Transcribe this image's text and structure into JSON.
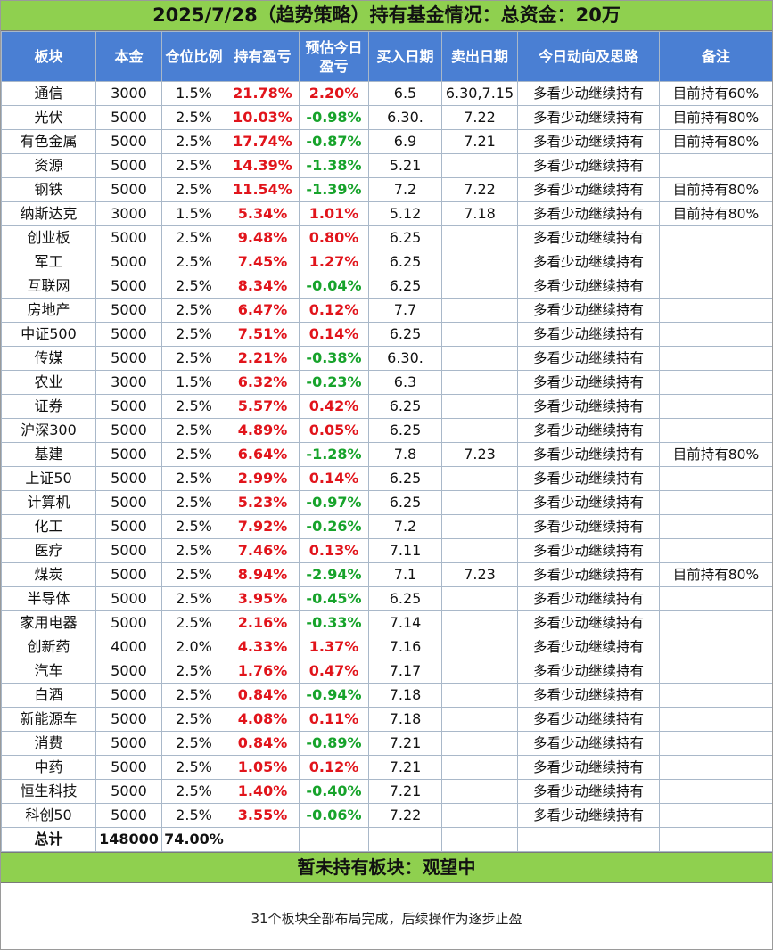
{
  "title": "2025/7/28（趋势策略）持有基金情况：总资金：20万",
  "headers": [
    "板块",
    "本金",
    "仓位比例",
    "持有盈亏",
    "预估今日盈亏",
    "买入日期",
    "卖出日期",
    "今日动向及思路",
    "备注"
  ],
  "rows": [
    {
      "sector": "通信",
      "capital": "3000",
      "ratio": "1.5%",
      "pl": "21.78%",
      "est": "2.20%",
      "buy": "6.5",
      "sell": "6.30,7.15",
      "action": "多看少动继续持有",
      "note": "目前持有60%"
    },
    {
      "sector": "光伏",
      "capital": "5000",
      "ratio": "2.5%",
      "pl": "10.03%",
      "est": "-0.98%",
      "buy": "6.30.",
      "sell": "7.22",
      "action": "多看少动继续持有",
      "note": "目前持有80%"
    },
    {
      "sector": "有色金属",
      "capital": "5000",
      "ratio": "2.5%",
      "pl": "17.74%",
      "est": "-0.87%",
      "buy": "6.9",
      "sell": "7.21",
      "action": "多看少动继续持有",
      "note": "目前持有80%"
    },
    {
      "sector": "资源",
      "capital": "5000",
      "ratio": "2.5%",
      "pl": "14.39%",
      "est": "-1.38%",
      "buy": "5.21",
      "sell": "",
      "action": "多看少动继续持有",
      "note": ""
    },
    {
      "sector": "钢铁",
      "capital": "5000",
      "ratio": "2.5%",
      "pl": "11.54%",
      "est": "-1.39%",
      "buy": "7.2",
      "sell": "7.22",
      "action": "多看少动继续持有",
      "note": "目前持有80%"
    },
    {
      "sector": "纳斯达克",
      "capital": "3000",
      "ratio": "1.5%",
      "pl": "5.34%",
      "est": "1.01%",
      "buy": "5.12",
      "sell": "7.18",
      "action": "多看少动继续持有",
      "note": "目前持有80%"
    },
    {
      "sector": "创业板",
      "capital": "5000",
      "ratio": "2.5%",
      "pl": "9.48%",
      "est": "0.80%",
      "buy": "6.25",
      "sell": "",
      "action": "多看少动继续持有",
      "note": ""
    },
    {
      "sector": "军工",
      "capital": "5000",
      "ratio": "2.5%",
      "pl": "7.45%",
      "est": "1.27%",
      "buy": "6.25",
      "sell": "",
      "action": "多看少动继续持有",
      "note": ""
    },
    {
      "sector": "互联网",
      "capital": "5000",
      "ratio": "2.5%",
      "pl": "8.34%",
      "est": "-0.04%",
      "buy": "6.25",
      "sell": "",
      "action": "多看少动继续持有",
      "note": ""
    },
    {
      "sector": "房地产",
      "capital": "5000",
      "ratio": "2.5%",
      "pl": "6.47%",
      "est": "0.12%",
      "buy": "7.7",
      "sell": "",
      "action": "多看少动继续持有",
      "note": ""
    },
    {
      "sector": "中证500",
      "capital": "5000",
      "ratio": "2.5%",
      "pl": "7.51%",
      "est": "0.14%",
      "buy": "6.25",
      "sell": "",
      "action": "多看少动继续持有",
      "note": ""
    },
    {
      "sector": "传媒",
      "capital": "5000",
      "ratio": "2.5%",
      "pl": "2.21%",
      "est": "-0.38%",
      "buy": "6.30.",
      "sell": "",
      "action": "多看少动继续持有",
      "note": ""
    },
    {
      "sector": "农业",
      "capital": "3000",
      "ratio": "1.5%",
      "pl": "6.32%",
      "est": "-0.23%",
      "buy": "6.3",
      "sell": "",
      "action": "多看少动继续持有",
      "note": ""
    },
    {
      "sector": "证券",
      "capital": "5000",
      "ratio": "2.5%",
      "pl": "5.57%",
      "est": "0.42%",
      "buy": "6.25",
      "sell": "",
      "action": "多看少动继续持有",
      "note": ""
    },
    {
      "sector": "沪深300",
      "capital": "5000",
      "ratio": "2.5%",
      "pl": "4.89%",
      "est": "0.05%",
      "buy": "6.25",
      "sell": "",
      "action": "多看少动继续持有",
      "note": ""
    },
    {
      "sector": "基建",
      "capital": "5000",
      "ratio": "2.5%",
      "pl": "6.64%",
      "est": "-1.28%",
      "buy": "7.8",
      "sell": "7.23",
      "action": "多看少动继续持有",
      "note": "目前持有80%"
    },
    {
      "sector": "上证50",
      "capital": "5000",
      "ratio": "2.5%",
      "pl": "2.99%",
      "est": "0.14%",
      "buy": "6.25",
      "sell": "",
      "action": "多看少动继续持有",
      "note": ""
    },
    {
      "sector": "计算机",
      "capital": "5000",
      "ratio": "2.5%",
      "pl": "5.23%",
      "est": "-0.97%",
      "buy": "6.25",
      "sell": "",
      "action": "多看少动继续持有",
      "note": ""
    },
    {
      "sector": "化工",
      "capital": "5000",
      "ratio": "2.5%",
      "pl": "7.92%",
      "est": "-0.26%",
      "buy": "7.2",
      "sell": "",
      "action": "多看少动继续持有",
      "note": ""
    },
    {
      "sector": "医疗",
      "capital": "5000",
      "ratio": "2.5%",
      "pl": "7.46%",
      "est": "0.13%",
      "buy": "7.11",
      "sell": "",
      "action": "多看少动继续持有",
      "note": ""
    },
    {
      "sector": "煤炭",
      "capital": "5000",
      "ratio": "2.5%",
      "pl": "8.94%",
      "est": "-2.94%",
      "buy": "7.1",
      "sell": "7.23",
      "action": "多看少动继续持有",
      "note": "目前持有80%"
    },
    {
      "sector": "半导体",
      "capital": "5000",
      "ratio": "2.5%",
      "pl": "3.95%",
      "est": "-0.45%",
      "buy": "6.25",
      "sell": "",
      "action": "多看少动继续持有",
      "note": ""
    },
    {
      "sector": "家用电器",
      "capital": "5000",
      "ratio": "2.5%",
      "pl": "2.16%",
      "est": "-0.33%",
      "buy": "7.14",
      "sell": "",
      "action": "多看少动继续持有",
      "note": ""
    },
    {
      "sector": "创新药",
      "capital": "4000",
      "ratio": "2.0%",
      "pl": "4.33%",
      "est": "1.37%",
      "buy": "7.16",
      "sell": "",
      "action": "多看少动继续持有",
      "note": ""
    },
    {
      "sector": "汽车",
      "capital": "5000",
      "ratio": "2.5%",
      "pl": "1.76%",
      "est": "0.47%",
      "buy": "7.17",
      "sell": "",
      "action": "多看少动继续持有",
      "note": ""
    },
    {
      "sector": "白酒",
      "capital": "5000",
      "ratio": "2.5%",
      "pl": "0.84%",
      "est": "-0.94%",
      "buy": "7.18",
      "sell": "",
      "action": "多看少动继续持有",
      "note": ""
    },
    {
      "sector": "新能源车",
      "capital": "5000",
      "ratio": "2.5%",
      "pl": "4.08%",
      "est": "0.11%",
      "buy": "7.18",
      "sell": "",
      "action": "多看少动继续持有",
      "note": ""
    },
    {
      "sector": "消费",
      "capital": "5000",
      "ratio": "2.5%",
      "pl": "0.84%",
      "est": "-0.89%",
      "buy": "7.21",
      "sell": "",
      "action": "多看少动继续持有",
      "note": ""
    },
    {
      "sector": "中药",
      "capital": "5000",
      "ratio": "2.5%",
      "pl": "1.05%",
      "est": "0.12%",
      "buy": "7.21",
      "sell": "",
      "action": "多看少动继续持有",
      "note": ""
    },
    {
      "sector": "恒生科技",
      "capital": "5000",
      "ratio": "2.5%",
      "pl": "1.40%",
      "est": "-0.40%",
      "buy": "7.21",
      "sell": "",
      "action": "多看少动继续持有",
      "note": ""
    },
    {
      "sector": "科创50",
      "capital": "5000",
      "ratio": "2.5%",
      "pl": "3.55%",
      "est": "-0.06%",
      "buy": "7.22",
      "sell": "",
      "action": "多看少动继续持有",
      "note": ""
    }
  ],
  "total": {
    "label": "总计",
    "capital": "148000",
    "ratio": "74.00%"
  },
  "holding_banner": "暂未持有板块：观望中",
  "footer_note": "31个板块全部布局完成，后续操作为逐步止盈",
  "colors": {
    "header_bg": "#4a7fd3",
    "title_bg": "#8fd04f",
    "profit_red": "#e1141b",
    "loss_green": "#17a32b"
  }
}
